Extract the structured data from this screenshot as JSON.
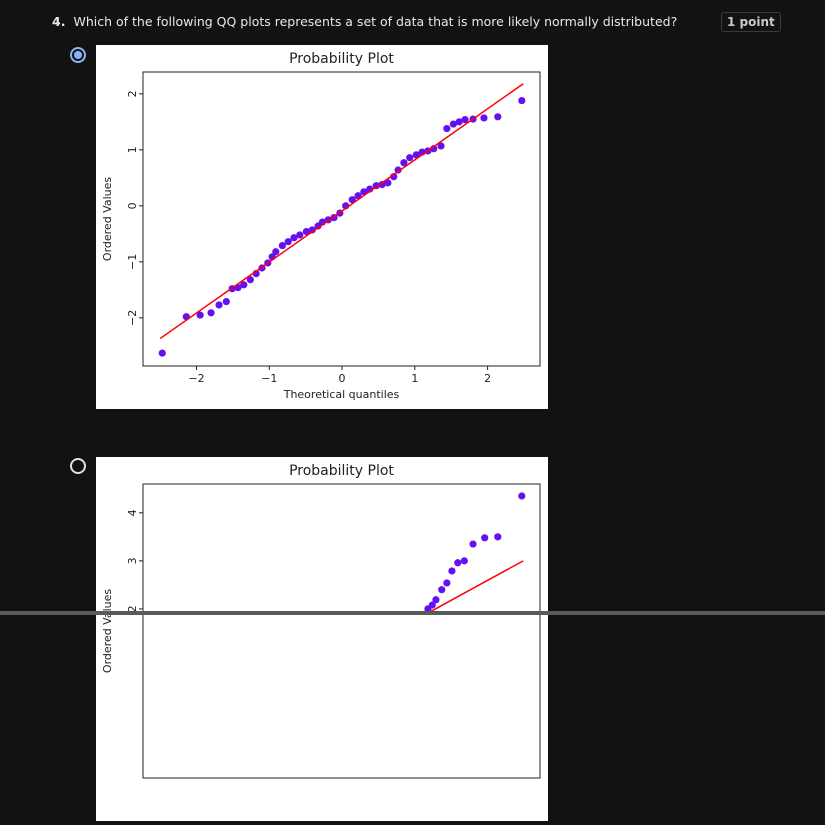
{
  "question": {
    "number": "4.",
    "text": "Which of the following QQ plots represents a set of data that is more likely normally distributed?",
    "points": "1 point"
  },
  "options": [
    {
      "selected": true,
      "chart_data": {
        "type": "scatter",
        "title": "Probability Plot",
        "xlabel": "Theoretical quantiles",
        "ylabel": "Ordered Values",
        "xlim": [
          -2.735,
          2.72
        ],
        "ylim": [
          -2.86,
          2.39
        ],
        "xticks": [
          {
            "value": -2,
            "label": "−2"
          },
          {
            "value": -1,
            "label": "−1"
          },
          0,
          1,
          2
        ],
        "yticks": [
          {
            "value": -2,
            "label": "−2"
          },
          {
            "value": -1,
            "label": "−1"
          },
          0,
          1,
          2
        ],
        "color": "#6610f2",
        "x": [
          -2.47,
          -2.14,
          -1.95,
          -1.8,
          -1.69,
          -1.59,
          -1.51,
          -1.43,
          -1.35,
          -1.26,
          -1.18,
          -1.1,
          -1.02,
          -0.96,
          -0.91,
          -0.82,
          -0.74,
          -0.66,
          -0.58,
          -0.49,
          -0.41,
          -0.33,
          -0.27,
          -0.19,
          -0.11,
          -0.03,
          0.05,
          0.14,
          0.22,
          0.3,
          0.38,
          0.47,
          0.55,
          0.63,
          0.71,
          0.77,
          0.85,
          0.93,
          1.02,
          1.1,
          1.18,
          1.26,
          1.36,
          1.44,
          1.53,
          1.61,
          1.69,
          1.8,
          1.95,
          2.14,
          2.47
        ],
        "values": [
          -2.63,
          -1.98,
          -1.95,
          -1.91,
          -1.77,
          -1.71,
          -1.48,
          -1.46,
          -1.41,
          -1.32,
          -1.21,
          -1.11,
          -1.02,
          -0.91,
          -0.82,
          -0.71,
          -0.64,
          -0.57,
          -0.52,
          -0.46,
          -0.43,
          -0.36,
          -0.29,
          -0.25,
          -0.21,
          -0.13,
          0.0,
          0.11,
          0.18,
          0.25,
          0.3,
          0.36,
          0.38,
          0.41,
          0.52,
          0.64,
          0.77,
          0.86,
          0.91,
          0.96,
          0.98,
          1.02,
          1.07,
          1.38,
          1.46,
          1.5,
          1.54,
          1.55,
          1.57,
          1.59,
          1.88
        ],
        "fit_line": {
          "color": "#ff0000",
          "x": [
            -2.5,
            2.49
          ],
          "values": [
            -2.37,
            2.18
          ]
        }
      }
    },
    {
      "selected": false,
      "chart_data": {
        "type": "scatter",
        "title": "Probability Plot",
        "ylabel": "Ordered Values",
        "xlim": [
          -2.735,
          2.72
        ],
        "ylim": [
          -1.52,
          4.6
        ],
        "yticks": [
          2,
          3,
          4
        ],
        "color": "#6610f2",
        "x": [
          1.18,
          1.24,
          1.29,
          1.37,
          1.44,
          1.51,
          1.59,
          1.68,
          1.8,
          1.96,
          2.14,
          2.47
        ],
        "values": [
          2.0,
          2.08,
          2.19,
          2.4,
          2.54,
          2.79,
          2.96,
          3.0,
          3.35,
          3.48,
          3.5,
          4.35
        ],
        "fit_line": {
          "color": "#ff0000",
          "x": [
            1.21,
            2.49
          ],
          "values": [
            1.94,
            3.0
          ]
        }
      }
    }
  ]
}
